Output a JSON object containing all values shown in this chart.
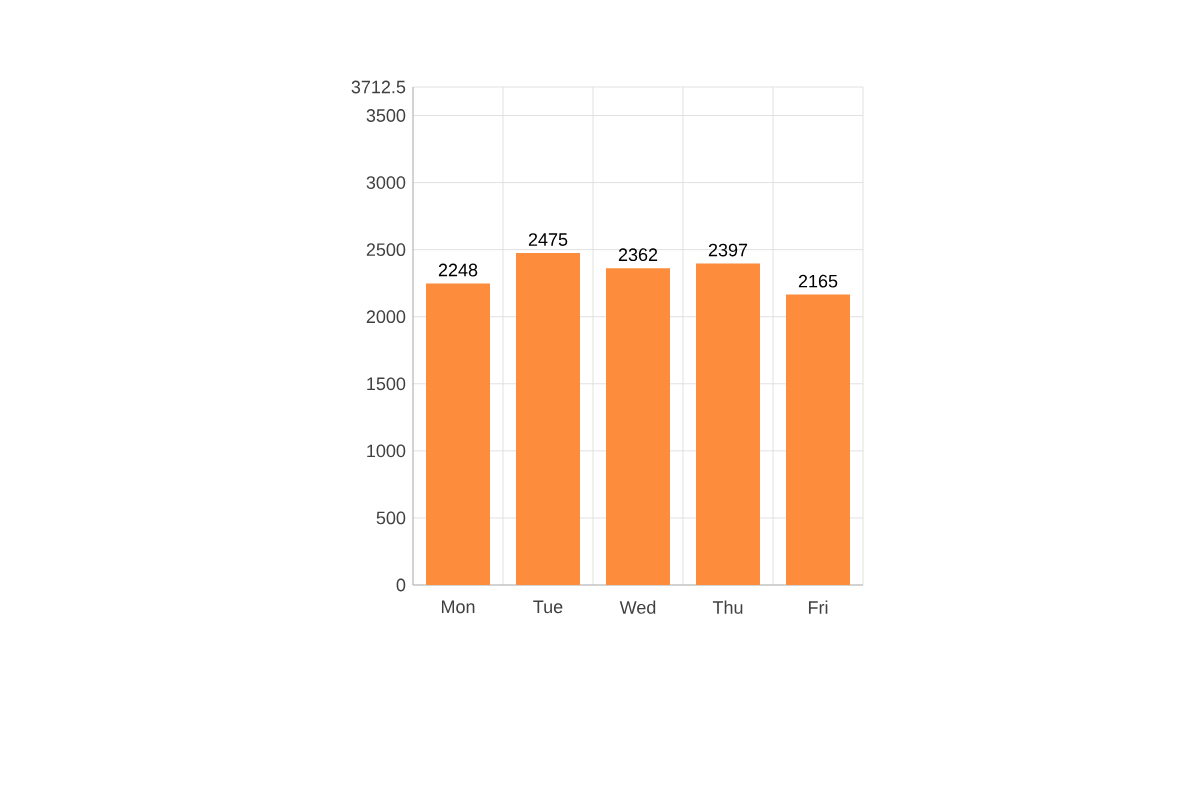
{
  "chart_data": {
    "type": "bar",
    "categories": [
      "Mon",
      "Tue",
      "Wed",
      "Thu",
      "Fri"
    ],
    "values": [
      2248,
      2475,
      2362,
      2397,
      2165
    ],
    "color": "#fd8c3c",
    "ylim": [
      0,
      3712.5
    ],
    "yticks": [
      0,
      500,
      1000,
      1500,
      2000,
      2500,
      3000,
      3500,
      3712.5
    ],
    "grid": true,
    "data_labels": true
  }
}
